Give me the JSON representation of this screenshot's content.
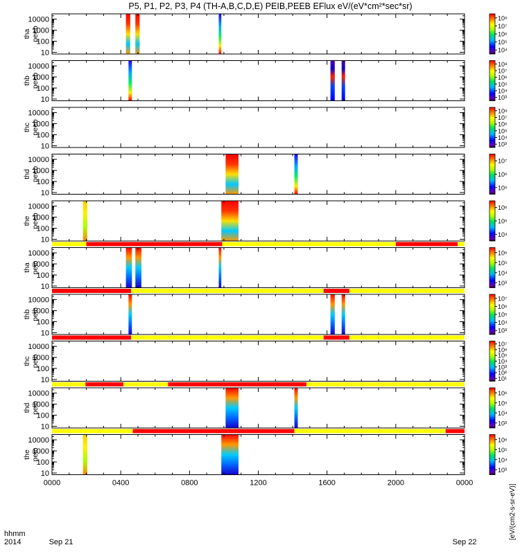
{
  "title": "P5, P1, P2, P3, P4 (TH-A,B,C,D,E) PEIB,PEEB EFlux eV/(eV*cm²*sec*sr)",
  "x_axis": {
    "row_label": "hhmm",
    "year": "2014",
    "ticks": [
      "0000",
      "0400",
      "0800",
      "1200",
      "1600",
      "2000",
      "0000"
    ],
    "date_start": "Sep 21",
    "date_end": "Sep 22",
    "range_hours": [
      0,
      24
    ]
  },
  "colorbar_label": "[eV/(cm2-s-sr-eV)]",
  "chart_data": [
    {
      "type": "heatmap",
      "ylabel": [
        "tha",
        "peeb"
      ],
      "yscale": "log",
      "ylim": [
        7,
        30000
      ],
      "yticks": [
        "10",
        "100",
        "1000",
        "10000"
      ],
      "colorbar_ticks": [
        "10⁴",
        "10⁵",
        "10⁶",
        "10⁷",
        "10⁸"
      ],
      "mode_bar": null,
      "data_blocks": [
        {
          "t0": 4.3,
          "t1": 4.55,
          "profile": "hot"
        },
        {
          "t0": 4.85,
          "t1": 5.1,
          "profile": "hot"
        },
        {
          "t0": 9.7,
          "t1": 9.85,
          "profile": "mixed"
        }
      ]
    },
    {
      "type": "heatmap",
      "ylabel": [
        "thb",
        "peeb"
      ],
      "yscale": "log",
      "ylim": [
        7,
        30000
      ],
      "yticks": [
        "10",
        "100",
        "1000",
        "10000"
      ],
      "colorbar_ticks": [
        "10³",
        "10⁴",
        "10⁵",
        "10⁶",
        "10⁷",
        "10⁸"
      ],
      "mode_bar": null,
      "data_blocks": [
        {
          "t0": 4.45,
          "t1": 4.65,
          "profile": "mixed"
        },
        {
          "t0": 16.2,
          "t1": 16.45,
          "profile": "cool"
        },
        {
          "t0": 16.85,
          "t1": 17.05,
          "profile": "cool"
        }
      ]
    },
    {
      "type": "heatmap",
      "ylabel": [
        "thc",
        "peeb"
      ],
      "yscale": "log",
      "ylim": [
        7,
        30000
      ],
      "yticks": [
        "10",
        "100",
        "1000",
        "10000"
      ],
      "colorbar_ticks": [
        "10³",
        "10⁴",
        "10⁵",
        "10⁶",
        "10⁷",
        "10⁸"
      ],
      "mode_bar": null,
      "data_blocks": []
    },
    {
      "type": "heatmap",
      "ylabel": [
        "thd",
        "peeb"
      ],
      "yscale": "log",
      "ylim": [
        7,
        30000
      ],
      "yticks": [
        "10",
        "100",
        "1000",
        "10000"
      ],
      "colorbar_ticks": [
        "10⁵",
        "10⁶",
        "10⁷"
      ],
      "mode_bar": null,
      "data_blocks": [
        {
          "t0": 10.1,
          "t1": 10.85,
          "profile": "hot"
        },
        {
          "t0": 14.1,
          "t1": 14.3,
          "profile": "mixed"
        }
      ]
    },
    {
      "type": "heatmap",
      "ylabel": [
        "the",
        "peeb"
      ],
      "yscale": "log",
      "ylim": [
        7,
        30000
      ],
      "yticks": [
        "10",
        "100",
        "1000",
        "10000"
      ],
      "colorbar_ticks": [
        "10⁴",
        "10⁵",
        "10⁶"
      ],
      "mode_bar": null,
      "data_blocks": [
        {
          "t0": 1.8,
          "t1": 2.05,
          "profile": "warm"
        },
        {
          "t0": 9.85,
          "t1": 10.85,
          "profile": "hot"
        }
      ]
    },
    {
      "type": "heatmap",
      "ylabel": [
        "tha",
        "peib"
      ],
      "yscale": "log",
      "ylim": [
        7,
        30000
      ],
      "yticks": [
        "10",
        "100",
        "1000",
        "10000"
      ],
      "colorbar_ticks": [
        "10³",
        "10⁴",
        "10⁵",
        "10⁶"
      ],
      "mode_bar": [
        {
          "t0": 0,
          "t1": 2.0,
          "state": "yellow"
        },
        {
          "t0": 2.0,
          "t1": 9.9,
          "state": "red"
        },
        {
          "t0": 9.9,
          "t1": 20.0,
          "state": "yellow"
        },
        {
          "t0": 20.0,
          "t1": 23.6,
          "state": "red"
        },
        {
          "t0": 23.6,
          "t1": 24,
          "state": "yellow"
        }
      ],
      "data_blocks": [
        {
          "t0": 4.3,
          "t1": 4.65,
          "profile": "ion"
        },
        {
          "t0": 4.85,
          "t1": 5.2,
          "profile": "ion"
        },
        {
          "t0": 9.7,
          "t1": 9.85,
          "profile": "ion"
        }
      ]
    },
    {
      "type": "heatmap",
      "ylabel": [
        "thb",
        "peib"
      ],
      "yscale": "log",
      "ylim": [
        7,
        30000
      ],
      "yticks": [
        "10",
        "100",
        "1000",
        "10000"
      ],
      "colorbar_ticks": [
        "10³",
        "10⁴",
        "10⁵",
        "10⁶",
        "10⁷"
      ],
      "mode_bar": [
        {
          "t0": 0,
          "t1": 4.6,
          "state": "red"
        },
        {
          "t0": 4.6,
          "t1": 15.8,
          "state": "yellow"
        },
        {
          "t0": 15.8,
          "t1": 17.3,
          "state": "red"
        },
        {
          "t0": 17.3,
          "t1": 24,
          "state": "yellow"
        }
      ],
      "data_blocks": [
        {
          "t0": 4.45,
          "t1": 4.65,
          "profile": "ion"
        },
        {
          "t0": 16.2,
          "t1": 16.45,
          "profile": "ion"
        },
        {
          "t0": 16.85,
          "t1": 17.05,
          "profile": "ion"
        }
      ]
    },
    {
      "type": "heatmap",
      "ylabel": [
        "thc",
        "peib"
      ],
      "yscale": "log",
      "ylim": [
        7,
        30000
      ],
      "yticks": [
        "10",
        "100",
        "1000",
        "10000"
      ],
      "colorbar_ticks": [
        "10¹",
        "10²",
        "10³",
        "10⁴",
        "10⁵",
        "10⁶",
        "10⁷"
      ],
      "mode_bar": [
        {
          "t0": 0,
          "t1": 4.6,
          "state": "red"
        },
        {
          "t0": 4.6,
          "t1": 15.8,
          "state": "yellow"
        },
        {
          "t0": 15.8,
          "t1": 17.3,
          "state": "red"
        },
        {
          "t0": 17.3,
          "t1": 24,
          "state": "yellow"
        }
      ],
      "data_blocks": []
    },
    {
      "type": "heatmap",
      "ylabel": [
        "thd",
        "peib"
      ],
      "yscale": "log",
      "ylim": [
        7,
        30000
      ],
      "yticks": [
        "10",
        "100",
        "1000",
        "10000"
      ],
      "colorbar_ticks": [
        "10³",
        "10⁴",
        "10⁵",
        "10⁶"
      ],
      "mode_bar": [
        {
          "t0": 0,
          "t1": 1.95,
          "state": "yellow"
        },
        {
          "t0": 1.95,
          "t1": 4.15,
          "state": "red"
        },
        {
          "t0": 4.15,
          "t1": 6.75,
          "state": "yellow"
        },
        {
          "t0": 6.75,
          "t1": 14.8,
          "state": "red"
        },
        {
          "t0": 14.8,
          "t1": 24,
          "state": "yellow"
        }
      ],
      "data_blocks": [
        {
          "t0": 10.1,
          "t1": 10.85,
          "profile": "ion"
        },
        {
          "t0": 14.1,
          "t1": 14.3,
          "profile": "ion"
        }
      ]
    },
    {
      "type": "heatmap",
      "ylabel": [
        "the",
        "peib"
      ],
      "yscale": "log",
      "ylim": [
        7,
        30000
      ],
      "yticks": [
        "10",
        "100",
        "1000",
        "10000"
      ],
      "colorbar_ticks": [
        "10³",
        "10⁴",
        "10⁵",
        "10⁶"
      ],
      "mode_bar": [
        {
          "t0": 0,
          "t1": 4.7,
          "state": "yellow"
        },
        {
          "t0": 4.7,
          "t1": 14.1,
          "state": "red"
        },
        {
          "t0": 14.1,
          "t1": 22.9,
          "state": "yellow"
        },
        {
          "t0": 22.9,
          "t1": 24,
          "state": "red"
        }
      ],
      "data_blocks": [
        {
          "t0": 1.8,
          "t1": 2.05,
          "profile": "warm"
        },
        {
          "t0": 9.85,
          "t1": 10.85,
          "profile": "ion"
        }
      ]
    }
  ]
}
